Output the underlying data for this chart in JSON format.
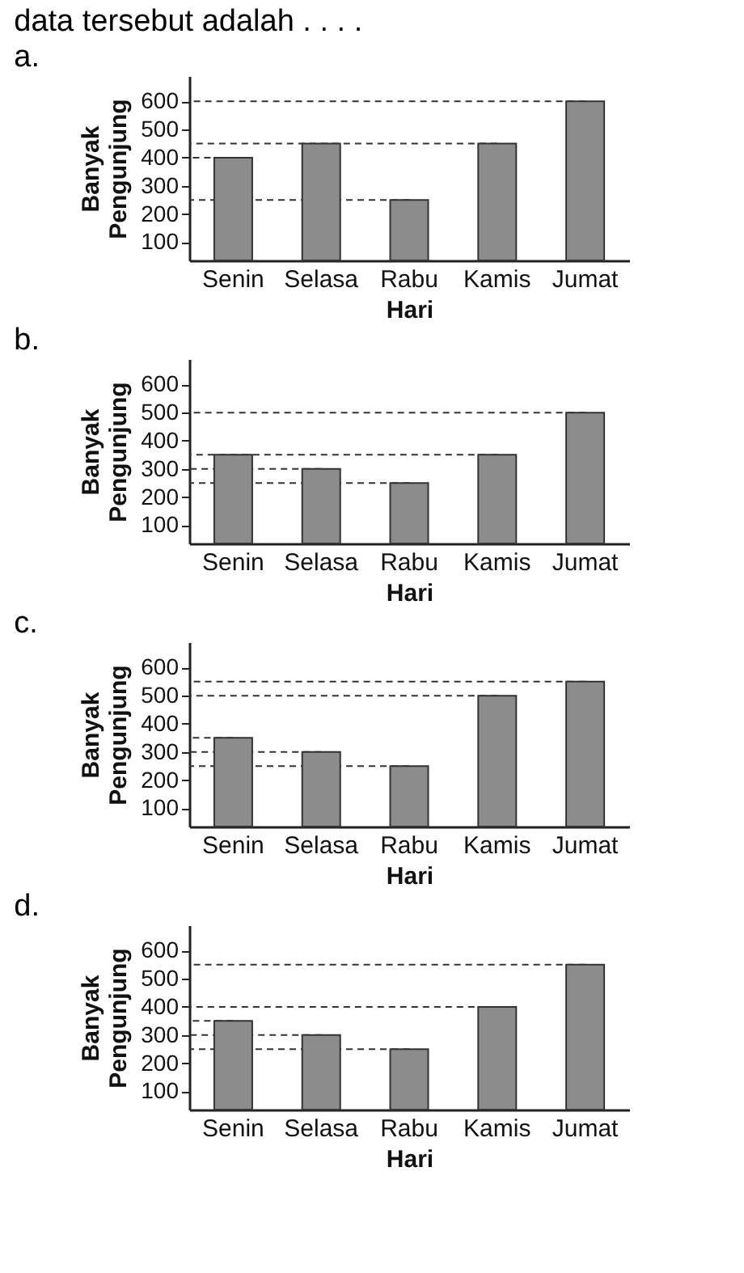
{
  "chart_data": [
    {
      "type": "bar",
      "title": "data tersebut adalah . . . .",
      "subtitle": "a.",
      "xlabel": "Hari",
      "ylabel": "Banyak Pengunjung",
      "categories": [
        "Senin",
        "Selasa",
        "Rabu",
        "Kamis",
        "Jumat"
      ],
      "values": [
        400,
        450,
        250,
        450,
        600
      ],
      "color": "#8c8c8c",
      "ylim": [
        35,
        690
      ],
      "yticks": [
        100,
        200,
        300,
        400,
        500,
        600
      ],
      "ref_lines": [
        {
          "axis": "y",
          "value": 600,
          "line_style": "dashed"
        },
        {
          "axis": "y",
          "value": 450,
          "line_style": "dashed"
        },
        {
          "axis": "y",
          "value": 400,
          "line_style": "dashed"
        },
        {
          "axis": "y",
          "value": 250,
          "line_style": "dashed"
        }
      ]
    },
    {
      "type": "bar",
      "title": "b.",
      "xlabel": "Hari",
      "ylabel": "Banyak Pengunjung",
      "categories": [
        "Senin",
        "Selasa",
        "Rabu",
        "Kamis",
        "Jumat"
      ],
      "values": [
        350,
        300,
        250,
        350,
        500
      ],
      "color": "#8c8c8c",
      "ylim": [
        35,
        690
      ],
      "yticks": [
        100,
        200,
        300,
        400,
        500,
        600
      ],
      "ref_lines": [
        {
          "axis": "y",
          "value": 500,
          "line_style": "dashed"
        },
        {
          "axis": "y",
          "value": 350,
          "line_style": "dashed"
        },
        {
          "axis": "y",
          "value": 300,
          "line_style": "dashed"
        },
        {
          "axis": "y",
          "value": 250,
          "line_style": "dashed"
        }
      ]
    },
    {
      "type": "bar",
      "title": "c.",
      "xlabel": "Hari",
      "ylabel": "Banyak Pengunjung",
      "categories": [
        "Senin",
        "Selasa",
        "Rabu",
        "Kamis",
        "Jumat"
      ],
      "values": [
        350,
        300,
        250,
        500,
        550
      ],
      "color": "#8c8c8c",
      "ylim": [
        35,
        690
      ],
      "yticks": [
        100,
        200,
        300,
        400,
        500,
        600
      ],
      "ref_lines": [
        {
          "axis": "y",
          "value": 550,
          "line_style": "dashed"
        },
        {
          "axis": "y",
          "value": 500,
          "line_style": "dashed"
        },
        {
          "axis": "y",
          "value": 350,
          "line_style": "dashed"
        },
        {
          "axis": "y",
          "value": 300,
          "line_style": "dashed"
        },
        {
          "axis": "y",
          "value": 250,
          "line_style": "dashed"
        }
      ]
    },
    {
      "type": "bar",
      "title": "d.",
      "xlabel": "Hari",
      "ylabel": "Banyak Pengunjung",
      "categories": [
        "Senin",
        "Selasa",
        "Rabu",
        "Kamis",
        "Jumat"
      ],
      "values": [
        350,
        300,
        250,
        400,
        550
      ],
      "color": "#8c8c8c",
      "ylim": [
        35,
        690
      ],
      "yticks": [
        100,
        200,
        300,
        400,
        500,
        600
      ],
      "ref_lines": [
        {
          "axis": "y",
          "value": 550,
          "line_style": "dashed"
        },
        {
          "axis": "y",
          "value": 400,
          "line_style": "dashed"
        },
        {
          "axis": "y",
          "value": 350,
          "line_style": "dashed"
        },
        {
          "axis": "y",
          "value": 300,
          "line_style": "dashed"
        },
        {
          "axis": "y",
          "value": 250,
          "line_style": "dashed"
        }
      ]
    }
  ]
}
